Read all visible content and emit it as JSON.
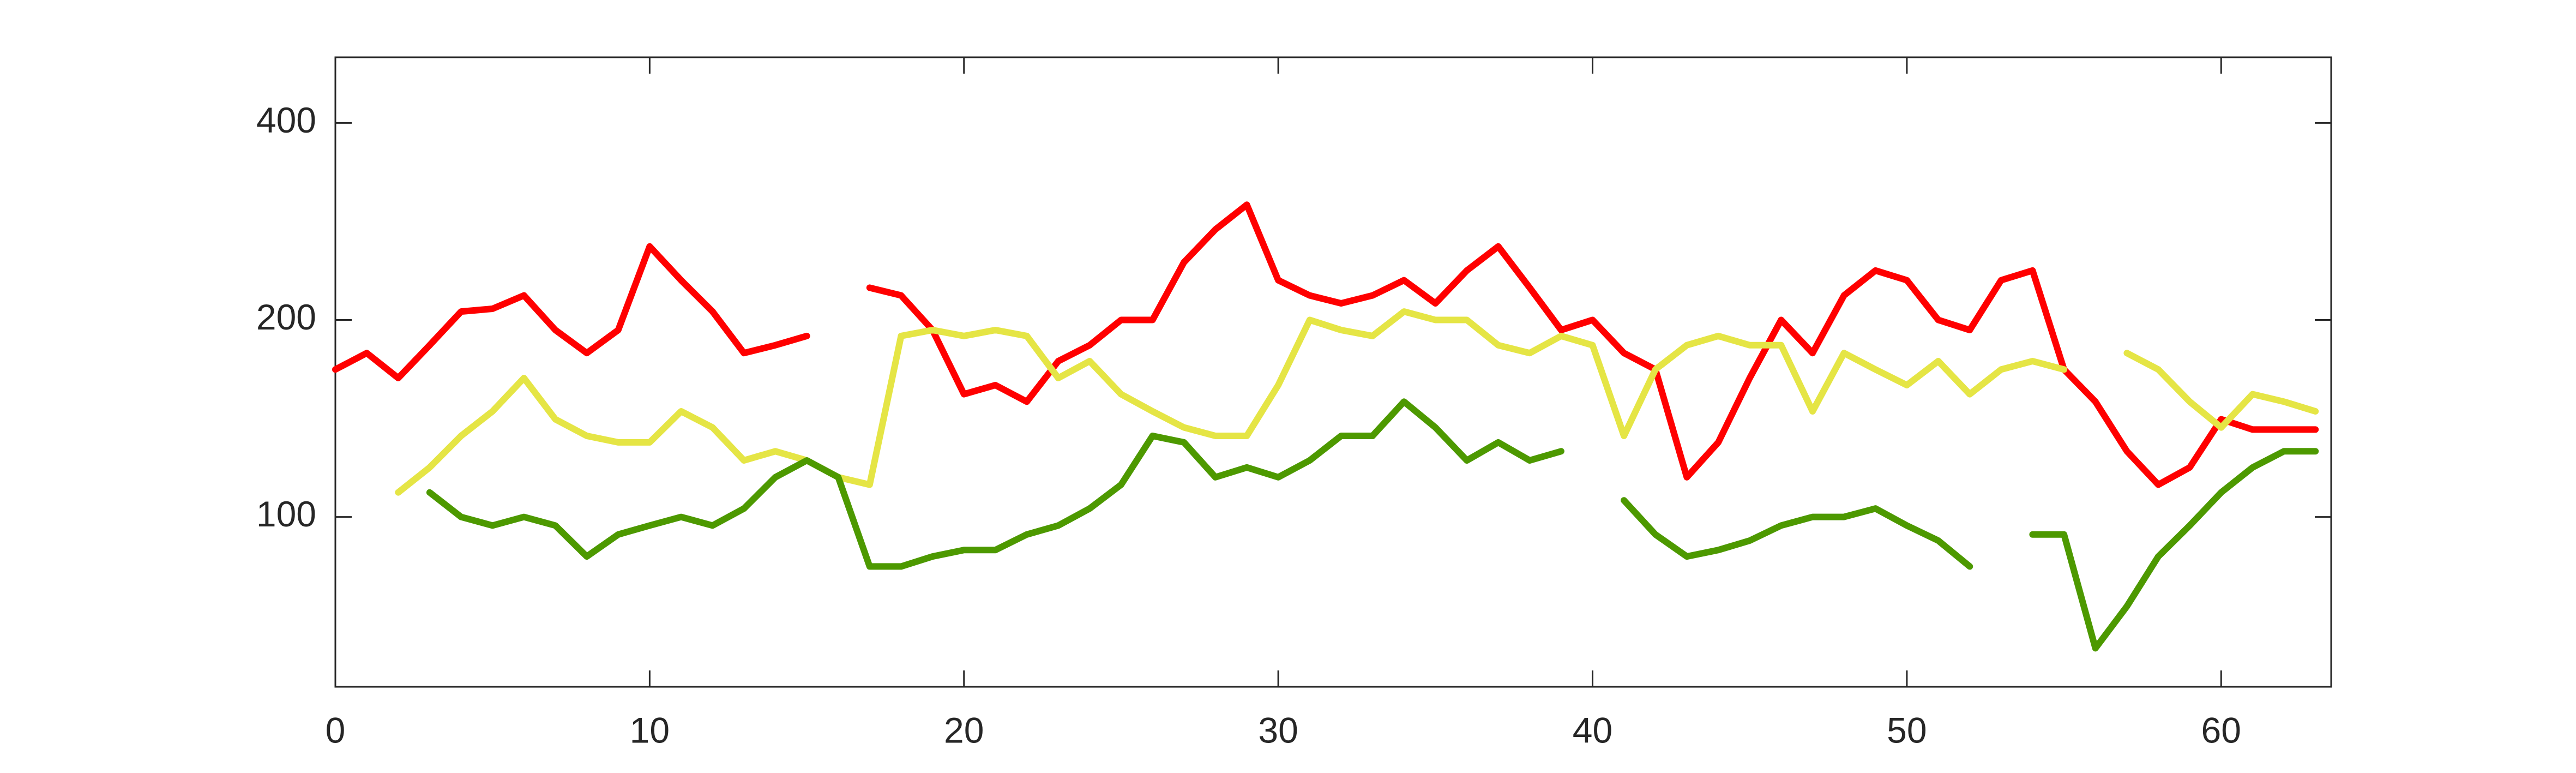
{
  "chart_data": {
    "type": "line",
    "yscale": "log",
    "grid": false,
    "x": [
      0,
      1,
      2,
      3,
      4,
      5,
      6,
      7,
      8,
      9,
      10,
      11,
      12,
      13,
      14,
      15,
      16,
      17,
      18,
      19,
      20,
      21,
      22,
      23,
      24,
      25,
      26,
      27,
      28,
      29,
      30,
      31,
      32,
      33,
      34,
      35,
      36,
      37,
      38,
      39,
      40,
      41,
      42,
      43,
      44,
      45,
      46,
      47,
      48,
      49,
      50,
      51,
      52,
      53,
      54,
      55,
      56,
      57,
      58,
      59,
      60,
      61,
      62,
      63
    ],
    "series": [
      {
        "color": "#ff0000",
        "values": [
          168,
          178,
          163,
          183,
          206,
          208,
          218,
          193,
          178,
          193,
          259,
          230,
          206,
          178,
          183,
          189,
          null,
          224,
          218,
          193,
          154,
          159,
          150,
          173,
          183,
          200,
          200,
          245,
          275,
          300,
          230,
          218,
          212,
          218,
          230,
          212,
          238,
          259,
          224,
          193,
          200,
          178,
          168,
          115,
          130,
          163,
          200,
          178,
          218,
          238,
          230,
          200,
          193,
          230,
          238,
          168,
          150,
          126,
          112,
          119,
          141,
          136,
          136,
          136
        ]
      },
      {
        "color": "#e5e545",
        "values": [
          null,
          null,
          109,
          119,
          133,
          145,
          163,
          141,
          133,
          130,
          130,
          145,
          137,
          122,
          126,
          122,
          115,
          112,
          189,
          193,
          189,
          193,
          189,
          163,
          173,
          154,
          145,
          137,
          133,
          133,
          159,
          200,
          193,
          189,
          206,
          200,
          200,
          183,
          178,
          189,
          183,
          133,
          168,
          183,
          189,
          183,
          183,
          145,
          178,
          168,
          159,
          173,
          154,
          168,
          173,
          168,
          null,
          178,
          168,
          150,
          137,
          154,
          150,
          145
        ]
      },
      {
        "color": "#4d9900",
        "values": [
          null,
          null,
          null,
          109,
          100,
          97,
          100,
          97,
          87,
          94,
          97,
          100,
          97,
          103,
          115,
          122,
          115,
          84,
          84,
          87,
          89,
          89,
          94,
          97,
          103,
          112,
          133,
          130,
          115,
          119,
          115,
          122,
          133,
          133,
          150,
          137,
          122,
          130,
          122,
          126,
          null,
          106,
          94,
          87,
          89,
          92,
          97,
          100,
          100,
          103,
          97,
          92,
          84,
          null,
          94,
          94,
          63,
          73,
          87,
          97,
          109,
          119,
          126,
          126
        ]
      }
    ],
    "xlim": [
      0,
      63.5
    ],
    "xticks": [
      0,
      10,
      20,
      30,
      40,
      50,
      60
    ],
    "ylim": [
      55,
      504
    ],
    "yticks": [
      100,
      200,
      400
    ]
  }
}
